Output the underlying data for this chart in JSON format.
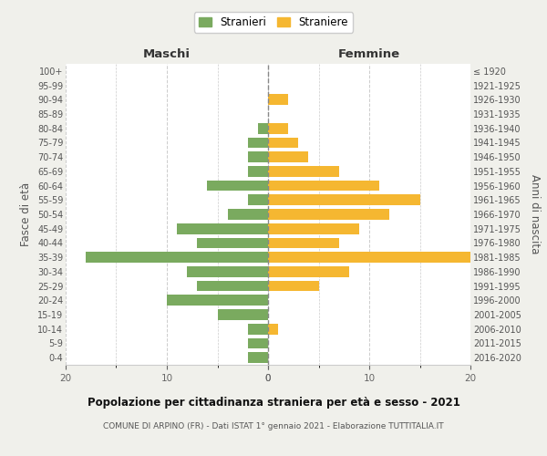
{
  "age_groups": [
    "100+",
    "95-99",
    "90-94",
    "85-89",
    "80-84",
    "75-79",
    "70-74",
    "65-69",
    "60-64",
    "55-59",
    "50-54",
    "45-49",
    "40-44",
    "35-39",
    "30-34",
    "25-29",
    "20-24",
    "15-19",
    "10-14",
    "5-9",
    "0-4"
  ],
  "birth_years": [
    "≤ 1920",
    "1921-1925",
    "1926-1930",
    "1931-1935",
    "1936-1940",
    "1941-1945",
    "1946-1950",
    "1951-1955",
    "1956-1960",
    "1961-1965",
    "1966-1970",
    "1971-1975",
    "1976-1980",
    "1981-1985",
    "1986-1990",
    "1991-1995",
    "1996-2000",
    "2001-2005",
    "2006-2010",
    "2011-2015",
    "2016-2020"
  ],
  "maschi": [
    0,
    0,
    0,
    0,
    1,
    2,
    2,
    2,
    6,
    2,
    4,
    9,
    7,
    18,
    8,
    7,
    10,
    5,
    2,
    2,
    2
  ],
  "femmine": [
    0,
    0,
    2,
    0,
    2,
    3,
    4,
    7,
    11,
    15,
    12,
    9,
    7,
    20,
    8,
    5,
    0,
    0,
    1,
    0,
    0
  ],
  "color_maschi": "#7aaa5f",
  "color_femmine": "#f5b731",
  "title": "Popolazione per cittadinanza straniera per età e sesso - 2021",
  "subtitle": "COMUNE DI ARPINO (FR) - Dati ISTAT 1° gennaio 2021 - Elaborazione TUTTITALIA.IT",
  "xlabel_left": "Maschi",
  "xlabel_right": "Femmine",
  "ylabel_left": "Fasce di età",
  "ylabel_right": "Anni di nascita",
  "legend_maschi": "Stranieri",
  "legend_femmine": "Straniere",
  "xlim": 20,
  "background_color": "#f0f0eb",
  "bar_background": "#ffffff"
}
